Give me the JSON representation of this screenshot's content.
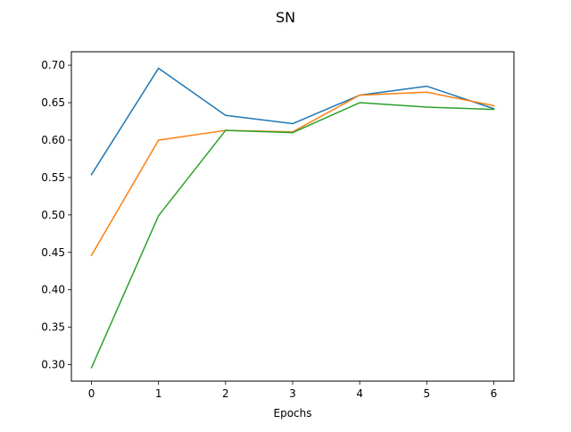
{
  "chart_data": {
    "type": "line",
    "title": "SN",
    "xlabel": "Epochs",
    "ylabel": "",
    "x": [
      0,
      1,
      2,
      3,
      4,
      5,
      6
    ],
    "xlim": [
      -0.3,
      6.3
    ],
    "ylim": [
      0.278,
      0.718
    ],
    "xticks": [
      0,
      1,
      2,
      3,
      4,
      5,
      6
    ],
    "yticks": [
      0.3,
      0.35,
      0.4,
      0.45,
      0.5,
      0.55,
      0.6,
      0.65,
      0.7
    ],
    "ytick_labels": [
      "0.30",
      "0.35",
      "0.40",
      "0.45",
      "0.50",
      "0.55",
      "0.60",
      "0.65",
      "0.70"
    ],
    "grid": false,
    "legend": "none",
    "series": [
      {
        "color": "#1f77b4",
        "values": [
          0.554,
          0.696,
          0.633,
          0.622,
          0.66,
          0.672,
          0.642
        ]
      },
      {
        "color": "#ff7f0e",
        "values": [
          0.446,
          0.6,
          0.613,
          0.611,
          0.66,
          0.664,
          0.646
        ]
      },
      {
        "color": "#2ca02c",
        "values": [
          0.296,
          0.499,
          0.613,
          0.61,
          0.65,
          0.644,
          0.641
        ]
      }
    ]
  }
}
